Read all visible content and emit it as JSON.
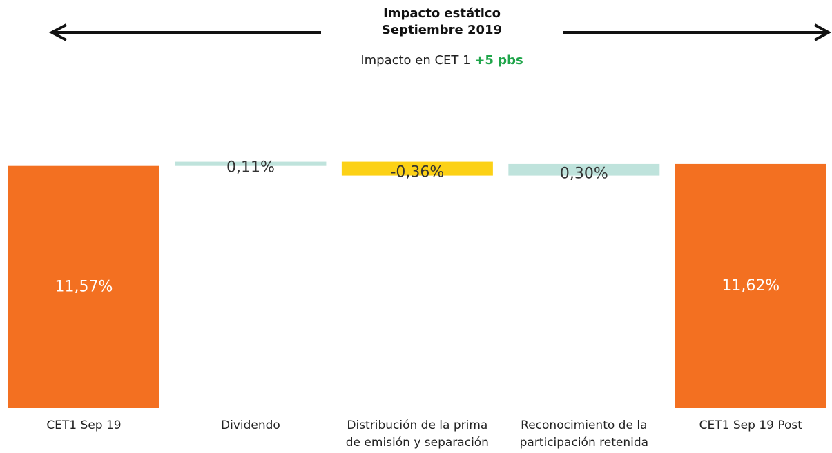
{
  "chart_data": {
    "type": "waterfall",
    "title": "Impacto estático",
    "subtitle": "Septiembre 2019",
    "annotation": {
      "text": "Impacto en CET 1",
      "highlight": "+5 pbs"
    },
    "categories": [
      [
        "CET1 Sep 19"
      ],
      [
        "Dividendo"
      ],
      [
        "Distribución de la prima",
        "de emisión y separación"
      ],
      [
        "Reconocimiento de la",
        "participación retenida"
      ],
      [
        "CET1 Sep 19 Post"
      ]
    ],
    "values": [
      11.57,
      0.11,
      -0.36,
      0.3,
      11.62
    ],
    "value_labels": [
      "11,57%",
      "0,11%",
      "-0,36%",
      "0,30%",
      "11,62%"
    ],
    "colors": [
      "#f37021",
      "#bfe3dc",
      "#fcd116",
      "#bfe3dc",
      "#f37021"
    ],
    "ylim": [
      5.25,
      12.5
    ]
  }
}
